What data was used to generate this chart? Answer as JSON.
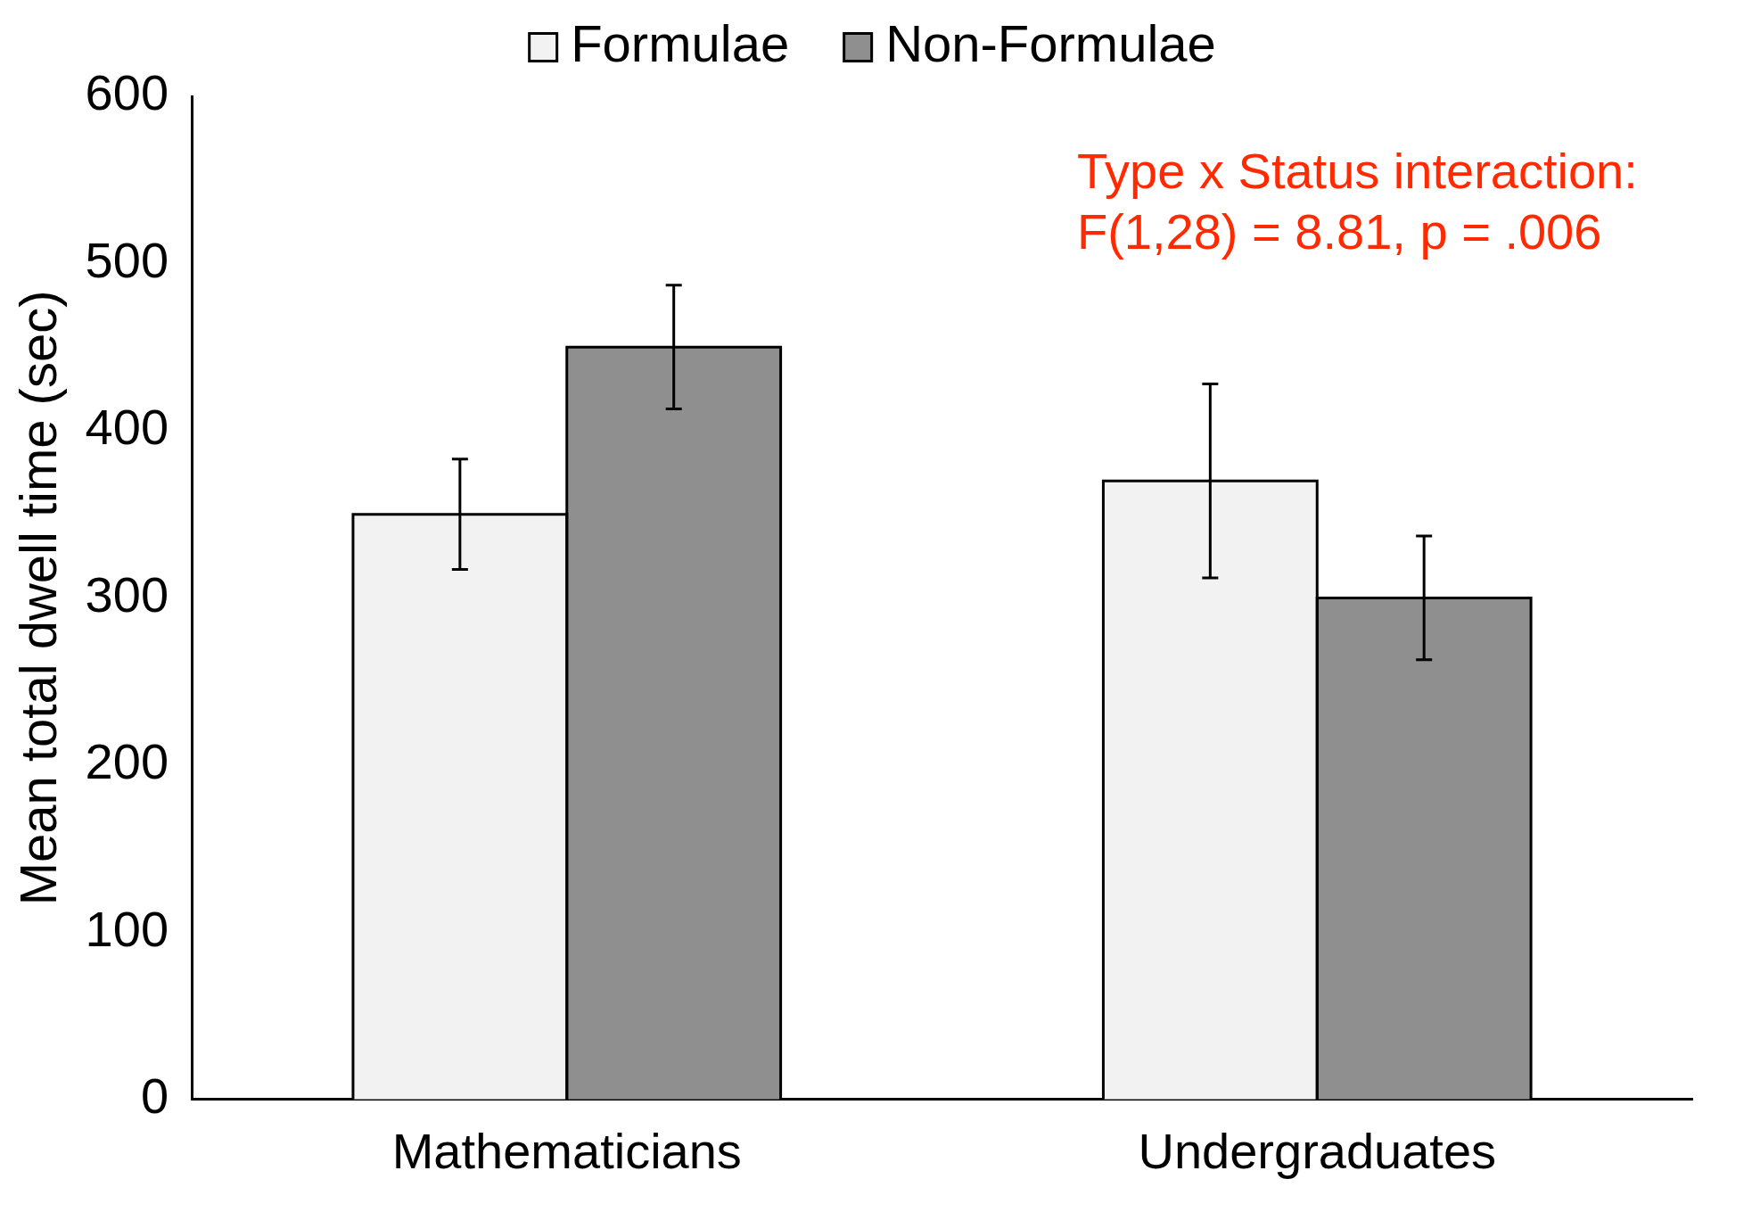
{
  "chart_data": {
    "type": "bar",
    "ylabel": "Mean total dwell time (sec)",
    "categories": [
      "Mathematicians",
      "Undergraduates"
    ],
    "series": [
      {
        "name": "Formulae",
        "color": "#f2f2f2",
        "values": [
          350,
          370
        ],
        "errors": [
          33,
          58
        ]
      },
      {
        "name": "Non-Formulae",
        "color": "#8f8f8f",
        "values": [
          450,
          300
        ],
        "errors": [
          37,
          37
        ]
      }
    ],
    "ylim": [
      0,
      600
    ],
    "yticks": [
      0,
      100,
      200,
      300,
      400,
      500,
      600
    ],
    "grid": false,
    "legend": "top",
    "annotations": [
      "Type x Status interaction:",
      "F(1,28) = 8.81, p = .006"
    ]
  }
}
